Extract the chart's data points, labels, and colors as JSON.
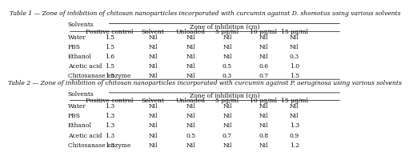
{
  "table1_title": "Table 1 — Zone of inhibition of chitosan nanoparticles incorporated with curcumin against D. shomotus using various solvents",
  "table2_title": "Table 2 — Zone of inhibition of chitosan nanoparticles incorporated with curcumin against P. aeruginosa using various solvents",
  "col_header_main": "Zone of inhibition (cm)",
  "col_headers": [
    "Positive control",
    "Solvent",
    "Unloaded",
    "5 μg/ml",
    "10 μg/ml",
    "15 μg/ml"
  ],
  "row_header": "Solvents",
  "table1_rows": [
    [
      "Water",
      "1.5",
      "Nil",
      "Nil",
      "Nil",
      "Nil",
      "Nil"
    ],
    [
      "PBS",
      "1.5",
      "Nil",
      "Nil",
      "Nil",
      "Nil",
      "Nil"
    ],
    [
      "Ethanol",
      "1.6",
      "Nil",
      "Nil",
      "Nil",
      "Nil",
      "0.3"
    ],
    [
      "Acetic acid",
      "1.5",
      "Nil",
      "Nil",
      "0.5",
      "0.6",
      "1.0"
    ],
    [
      "Chitosanase enzyme",
      "1.5",
      "Nil",
      "Nil",
      "0.3",
      "0.7",
      "1.5"
    ]
  ],
  "table2_rows": [
    [
      "Water",
      "1.3",
      "Nil",
      "Nil",
      "Nil",
      "Nil",
      "Nil"
    ],
    [
      "PBS",
      "1.3",
      "Nil",
      "Nil",
      "Nil",
      "Nil",
      "Nil"
    ],
    [
      "Ethanol",
      "1.3",
      "Nil",
      "Nil",
      "Nil",
      "Nil",
      "1.3"
    ],
    [
      "Acetic acid",
      "1.3",
      "Nil",
      "0.5",
      "0.7",
      "0.8",
      "0.9"
    ],
    [
      "Chitosanase enzyme",
      "1.3",
      "Nil",
      "Nil",
      "Nil",
      "Nil",
      "1.2"
    ]
  ],
  "bg_color": "#ffffff",
  "text_color": "#000000",
  "title_fontsize": 5.5,
  "header_fontsize": 5.5,
  "cell_fontsize": 5.5,
  "row_label_fontsize": 5.5
}
